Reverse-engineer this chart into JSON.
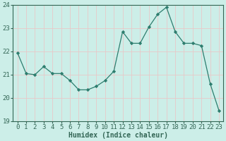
{
  "x": [
    0,
    1,
    2,
    3,
    4,
    5,
    6,
    7,
    8,
    9,
    10,
    11,
    12,
    13,
    14,
    15,
    16,
    17,
    18,
    19,
    20,
    21,
    22,
    23
  ],
  "y": [
    21.95,
    21.05,
    21.0,
    21.35,
    21.05,
    21.05,
    20.75,
    20.35,
    20.35,
    20.5,
    20.75,
    21.15,
    22.85,
    22.35,
    22.35,
    23.05,
    23.6,
    23.9,
    22.85,
    22.35,
    22.35,
    22.25,
    20.6,
    19.45
  ],
  "line_color": "#2d7d6e",
  "marker": "D",
  "marker_size": 2.2,
  "bg_color": "#cceee8",
  "grid_color": "#e8c8c8",
  "xlabel": "Humidex (Indice chaleur)",
  "ylabel": "",
  "ylim": [
    19,
    24
  ],
  "xlim": [
    -0.5,
    23.5
  ],
  "yticks": [
    19,
    20,
    21,
    22,
    23,
    24
  ],
  "xticks": [
    0,
    1,
    2,
    3,
    4,
    5,
    6,
    7,
    8,
    9,
    10,
    11,
    12,
    13,
    14,
    15,
    16,
    17,
    18,
    19,
    20,
    21,
    22,
    23
  ],
  "xlabel_fontsize": 7,
  "tick_fontsize": 6.5,
  "spine_color": "#336655",
  "tick_color": "#336655"
}
